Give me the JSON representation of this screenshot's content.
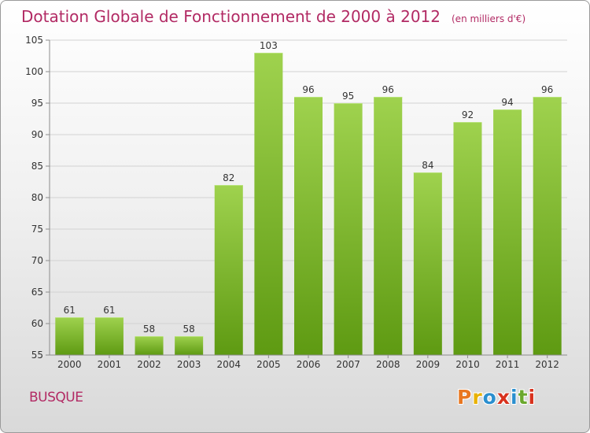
{
  "header": {
    "title": "Dotation Globale de Fonctionnement de 2000 à 2012",
    "unit_note": "(en milliers d'€)"
  },
  "footer": {
    "commune": "BUSQUE",
    "logo_text": "Proxiti"
  },
  "colors": {
    "title": "#b22a64",
    "bar_top": "#9fd24e",
    "bar_bottom": "#5e9a12",
    "grid": "#d2d2d2",
    "axis": "#8c8c8c",
    "logo_letters": [
      "#e87722",
      "#e8b100",
      "#2b8fcf",
      "#d8321e",
      "#2b8fcf",
      "#6aa82d",
      "#d8321e"
    ]
  },
  "chart_data": {
    "type": "bar",
    "categories": [
      "2000",
      "2001",
      "2002",
      "2003",
      "2004",
      "2005",
      "2006",
      "2007",
      "2008",
      "2009",
      "2010",
      "2011",
      "2012"
    ],
    "values": [
      61,
      61,
      58,
      58,
      82,
      103,
      96,
      95,
      96,
      84,
      92,
      94,
      96
    ],
    "data_labels": [
      "61",
      "61",
      "58",
      "58",
      "82",
      "103",
      "96",
      "95",
      "96",
      "84",
      "92",
      "94",
      "96"
    ],
    "title": "Dotation Globale de Fonctionnement de 2000 à 2012",
    "subtitle": "(en milliers d'€)",
    "xlabel": "",
    "ylabel": "",
    "ylim": [
      55,
      105
    ],
    "yticks": [
      55,
      60,
      65,
      70,
      75,
      80,
      85,
      90,
      95,
      100,
      105
    ],
    "grid": true,
    "legend": "none"
  }
}
